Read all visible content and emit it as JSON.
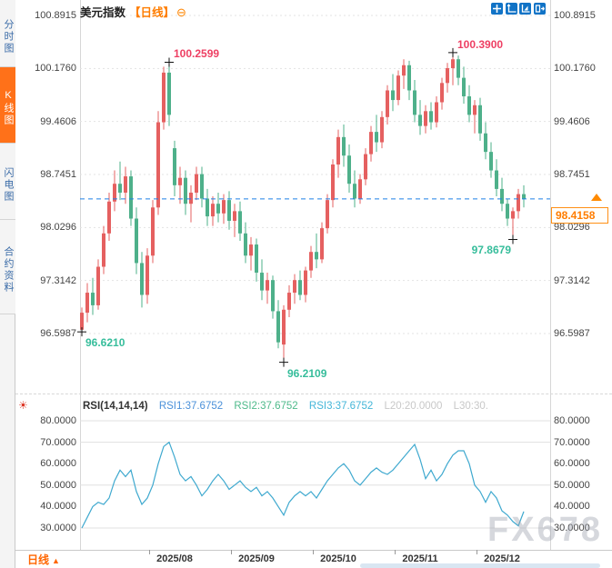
{
  "sidebar": {
    "items": [
      {
        "label": "分时图",
        "active": false
      },
      {
        "label": "K线图",
        "active": true
      },
      {
        "label": "闪电图",
        "active": false
      },
      {
        "label": "合约资料",
        "active": false
      }
    ]
  },
  "header": {
    "title": "美元指数",
    "timeframe_tag": "【日线】",
    "expand_icon": "⊖"
  },
  "price_badge": {
    "value": "98.4158"
  },
  "rsi_header": {
    "name": "RSI(14,14,14)",
    "rsi1": "RSI1:37.6752",
    "rsi2": "RSI2:37.6752",
    "rsi3": "RSI3:37.6752",
    "l20": "L20:20.0000",
    "l30": "L30:30."
  },
  "bottom_bar": {
    "timeframe": "日线",
    "arrow": "▲"
  },
  "watermark": "FX678",
  "colors": {
    "candle_up": "#e56060",
    "candle_down": "#4eb08a",
    "annotation_high": "#ee3f63",
    "annotation_low": "#36bd9b",
    "current_price_line": "#1f80e8",
    "rsi_line": "#3fa9cf",
    "accent_orange": "#ff7119",
    "toolbar_blue": "#1173c6",
    "grid": "#e3e3e3"
  },
  "chart_data": [
    {
      "type": "candlestick",
      "title": "美元指数 日线",
      "y_axis_labels": [
        100.8915,
        100.176,
        99.4606,
        98.7451,
        98.0296,
        97.3142,
        96.5987
      ],
      "x_axis_labels": [
        "2025/08",
        "2025/09",
        "2025/10",
        "2025/11",
        "2025/12"
      ],
      "current_price": 98.4158,
      "annotations": [
        {
          "text": "100.2599",
          "type": "high",
          "index": 16
        },
        {
          "text": "100.3900",
          "type": "high",
          "index": 68
        },
        {
          "text": "96.6210",
          "type": "low",
          "index": 0
        },
        {
          "text": "96.2109",
          "type": "low",
          "index": 37
        },
        {
          "text": "97.8679",
          "type": "low",
          "index": 79,
          "side": "left"
        }
      ],
      "candles_ohlc": [
        [
          96.65,
          96.95,
          96.621,
          96.88
        ],
        [
          96.88,
          97.28,
          96.75,
          97.15
        ],
        [
          97.15,
          97.35,
          96.85,
          96.98
        ],
        [
          96.98,
          97.6,
          96.92,
          97.5
        ],
        [
          97.5,
          98.05,
          97.4,
          97.95
        ],
        [
          97.95,
          98.5,
          97.85,
          98.38
        ],
        [
          98.38,
          98.8,
          98.25,
          98.62
        ],
        [
          98.62,
          98.92,
          98.4,
          98.5
        ],
        [
          98.5,
          98.85,
          98.35,
          98.72
        ],
        [
          98.72,
          98.8,
          98.05,
          98.15
        ],
        [
          98.15,
          98.3,
          97.4,
          97.55
        ],
        [
          97.55,
          97.7,
          96.95,
          97.12
        ],
        [
          97.12,
          97.75,
          97.0,
          97.65
        ],
        [
          97.65,
          98.4,
          97.55,
          98.3
        ],
        [
          98.3,
          99.6,
          98.2,
          99.45
        ],
        [
          99.45,
          100.2,
          99.35,
          100.12
        ],
        [
          100.12,
          100.2599,
          99.4,
          99.55
        ],
        [
          99.1,
          99.2,
          98.45,
          98.6
        ],
        [
          98.6,
          98.85,
          98.35,
          98.7
        ],
        [
          98.7,
          98.8,
          98.2,
          98.35
        ],
        [
          98.35,
          98.6,
          98.1,
          98.5
        ],
        [
          98.5,
          98.85,
          98.4,
          98.75
        ],
        [
          98.75,
          98.85,
          98.3,
          98.42
        ],
        [
          98.42,
          98.55,
          98.05,
          98.18
        ],
        [
          98.18,
          98.45,
          98.05,
          98.35
        ],
        [
          98.35,
          98.5,
          98.1,
          98.22
        ],
        [
          98.22,
          98.48,
          98.08,
          98.4
        ],
        [
          98.4,
          98.52,
          98.0,
          98.12
        ],
        [
          98.12,
          98.35,
          97.9,
          98.25
        ],
        [
          98.25,
          98.38,
          97.85,
          97.95
        ],
        [
          97.95,
          98.1,
          97.55,
          97.65
        ],
        [
          97.65,
          97.9,
          97.45,
          97.8
        ],
        [
          97.8,
          97.88,
          97.3,
          97.42
        ],
        [
          97.42,
          97.6,
          97.05,
          97.18
        ],
        [
          97.18,
          97.42,
          97.0,
          97.32
        ],
        [
          97.32,
          97.38,
          96.8,
          96.9
        ],
        [
          96.9,
          97.05,
          96.4,
          96.48
        ],
        [
          96.45,
          96.98,
          96.2109,
          96.92
        ],
        [
          96.92,
          97.25,
          96.82,
          97.15
        ],
        [
          97.15,
          97.4,
          97.0,
          97.32
        ],
        [
          97.32,
          97.45,
          97.05,
          97.12
        ],
        [
          97.12,
          97.5,
          97.02,
          97.45
        ],
        [
          97.45,
          97.78,
          97.35,
          97.7
        ],
        [
          97.7,
          97.95,
          97.48,
          97.6
        ],
        [
          97.6,
          98.1,
          97.55,
          98.02
        ],
        [
          98.02,
          98.48,
          97.95,
          98.4
        ],
        [
          98.4,
          98.95,
          98.3,
          98.88
        ],
        [
          98.88,
          99.35,
          98.7,
          99.25
        ],
        [
          99.25,
          99.42,
          98.85,
          99.0
        ],
        [
          99.0,
          99.15,
          98.5,
          98.62
        ],
        [
          98.62,
          98.8,
          98.3,
          98.42
        ],
        [
          98.42,
          98.75,
          98.35,
          98.68
        ],
        [
          98.68,
          99.1,
          98.6,
          99.02
        ],
        [
          99.02,
          99.4,
          98.92,
          99.32
        ],
        [
          99.32,
          99.55,
          99.05,
          99.18
        ],
        [
          99.18,
          99.6,
          99.1,
          99.52
        ],
        [
          99.52,
          99.95,
          99.42,
          99.88
        ],
        [
          99.88,
          100.1,
          99.6,
          99.75
        ],
        [
          99.75,
          100.15,
          99.68,
          100.08
        ],
        [
          100.08,
          100.3,
          99.9,
          100.22
        ],
        [
          100.22,
          100.28,
          99.75,
          99.88
        ],
        [
          99.88,
          100.02,
          99.45,
          99.55
        ],
        [
          99.55,
          99.75,
          99.28,
          99.4
        ],
        [
          99.4,
          99.68,
          99.3,
          99.6
        ],
        [
          99.6,
          99.72,
          99.35,
          99.45
        ],
        [
          99.45,
          99.8,
          99.38,
          99.72
        ],
        [
          99.72,
          100.05,
          99.62,
          99.98
        ],
        [
          99.98,
          100.25,
          99.85,
          100.18
        ],
        [
          100.18,
          100.39,
          99.95,
          100.3
        ],
        [
          100.3,
          100.35,
          99.95,
          100.05
        ],
        [
          100.05,
          100.2,
          99.7,
          99.8
        ],
        [
          99.8,
          99.95,
          99.45,
          99.55
        ],
        [
          99.55,
          99.75,
          99.3,
          99.68
        ],
        [
          99.68,
          99.78,
          99.2,
          99.3
        ],
        [
          99.3,
          99.45,
          98.95,
          99.05
        ],
        [
          99.05,
          99.18,
          98.7,
          98.8
        ],
        [
          98.8,
          98.95,
          98.45,
          98.55
        ],
        [
          98.55,
          98.7,
          98.25,
          98.35
        ],
        [
          98.35,
          98.42,
          98.05,
          98.15
        ],
        [
          98.15,
          98.3,
          97.8679,
          98.25
        ],
        [
          98.25,
          98.55,
          98.15,
          98.48
        ],
        [
          98.48,
          98.6,
          98.3,
          98.4158
        ]
      ]
    },
    {
      "type": "line",
      "name": "RSI",
      "y_axis_labels": [
        80,
        70,
        60,
        50,
        40,
        30
      ],
      "gridlines": [
        80,
        70,
        50,
        30
      ],
      "values": [
        30,
        35,
        40,
        42,
        41,
        44,
        52,
        57,
        54,
        57,
        47,
        41,
        44,
        50,
        60,
        68,
        70,
        63,
        55,
        52,
        54,
        50,
        45,
        48,
        52,
        55,
        52,
        48,
        50,
        52,
        49,
        47,
        49,
        45,
        47,
        44,
        40,
        36,
        42,
        45,
        47,
        45,
        47,
        44,
        48,
        52,
        55,
        58,
        60,
        57,
        52,
        50,
        53,
        56,
        58,
        56,
        55,
        57,
        60,
        63,
        66,
        69,
        62,
        53,
        57,
        52,
        55,
        60,
        64,
        66,
        66,
        60,
        50,
        47,
        42,
        47,
        44,
        38,
        36,
        33,
        31,
        37.68
      ]
    }
  ]
}
